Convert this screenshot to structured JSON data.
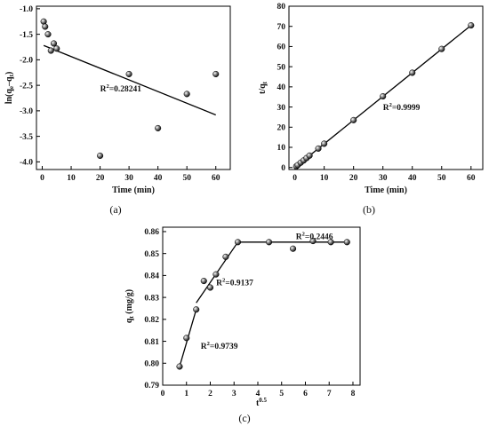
{
  "chart_data": [
    {
      "id": "a",
      "type": "scatter",
      "panel_label": "(a)",
      "xlabel": "Time (min)",
      "ylabel": "ln(q",
      "ylabel_parts": [
        "ln(q",
        "e",
        "–q",
        "t",
        ")"
      ],
      "xlim": [
        -2,
        65
      ],
      "ylim": [
        -4.15,
        -0.95
      ],
      "xticks": [
        0,
        10,
        20,
        30,
        40,
        50,
        60
      ],
      "yticks": [
        -1.0,
        -1.5,
        -2.0,
        -2.5,
        -3.0,
        -3.5,
        -4.0
      ],
      "ytick_labels": [
        "-1.0",
        "-1.5",
        "-2.0",
        "-2.5",
        "-3.0",
        "-3.5",
        "-4.0"
      ],
      "points": {
        "x": [
          0.5,
          1,
          2,
          3,
          4,
          5,
          20,
          30,
          40,
          50,
          60
        ],
        "y": [
          -1.25,
          -1.35,
          -1.5,
          -1.82,
          -1.68,
          -1.78,
          -3.88,
          -2.28,
          -3.34,
          -2.67,
          -2.28
        ]
      },
      "fit_line": {
        "x": [
          0.5,
          60
        ],
        "y": [
          -1.72,
          -3.08
        ]
      },
      "annotation": {
        "prefix": "R",
        "sup": "2",
        "text": "=0.28241",
        "at": [
          20,
          -2.62
        ]
      }
    },
    {
      "id": "b",
      "type": "scatter",
      "panel_label": "(b)",
      "xlabel": "Time (min)",
      "ylabel": "t/q",
      "ylabel_sub": "t",
      "xlim": [
        -2,
        64
      ],
      "ylim": [
        -1,
        80
      ],
      "xticks": [
        0,
        10,
        20,
        30,
        40,
        50,
        60
      ],
      "yticks": [
        0,
        10,
        20,
        30,
        40,
        50,
        60,
        70,
        80
      ],
      "ytick_labels": [
        "0",
        "10",
        "20",
        "30",
        "40",
        "50",
        "60",
        "70",
        "80"
      ],
      "points": {
        "x": [
          0.5,
          1,
          2,
          3,
          4,
          5,
          8,
          10,
          20,
          30,
          40,
          50,
          60
        ],
        "y": [
          0.6,
          1.2,
          2.4,
          3.5,
          4.7,
          5.9,
          9.4,
          11.8,
          23.5,
          35.3,
          47.0,
          58.8,
          70.5
        ]
      },
      "fit_line": {
        "x": [
          0,
          60
        ],
        "y": [
          0.0,
          70.5
        ]
      },
      "annotation": {
        "prefix": "R",
        "sup": "2",
        "text": "=0.9999",
        "at": [
          30,
          28.5
        ]
      }
    },
    {
      "id": "c",
      "type": "scatter",
      "panel_label": "(c)",
      "xlabel": "t",
      "xlabel_sup": "0.5",
      "ylabel": "q",
      "ylabel_sub": "t",
      "ylabel_suffix": " (mg/g)",
      "xlim": [
        0,
        8.3
      ],
      "ylim": [
        0.79,
        0.862
      ],
      "xticks": [
        0,
        1,
        2,
        3,
        4,
        5,
        6,
        7,
        8
      ],
      "yticks": [
        0.79,
        0.8,
        0.81,
        0.82,
        0.83,
        0.84,
        0.85,
        0.86
      ],
      "ytick_labels": [
        "0.79",
        "0.80",
        "0.81",
        "0.82",
        "0.83",
        "0.84",
        "0.85",
        "0.86"
      ],
      "points": {
        "x": [
          0.71,
          1.0,
          1.41,
          1.73,
          2.0,
          2.24,
          2.65,
          3.16,
          4.47,
          5.48,
          6.32,
          7.07,
          7.75
        ],
        "y": [
          0.7985,
          0.8115,
          0.8245,
          0.8375,
          0.8345,
          0.8405,
          0.8485,
          0.8552,
          0.8552,
          0.8522,
          0.8557,
          0.8552,
          0.8552
        ]
      },
      "fit_lines": [
        {
          "x": [
            0.71,
            1.41
          ],
          "y": [
            0.7985,
            0.8245
          ]
        },
        {
          "x": [
            1.41,
            3.16
          ],
          "y": [
            0.8275,
            0.8552
          ]
        },
        {
          "x": [
            3.16,
            7.75
          ],
          "y": [
            0.8552,
            0.8552
          ]
        }
      ],
      "annotations": [
        {
          "prefix": "R",
          "sup": "2",
          "text": "=0.9739",
          "at": [
            1.6,
            0.8065
          ]
        },
        {
          "prefix": "R",
          "sup": "2",
          "text": "=0.9137",
          "at": [
            2.25,
            0.8355
          ]
        },
        {
          "prefix": "R",
          "sup": "2",
          "text": "=0.2446",
          "at": [
            5.6,
            0.8565
          ]
        }
      ]
    }
  ]
}
